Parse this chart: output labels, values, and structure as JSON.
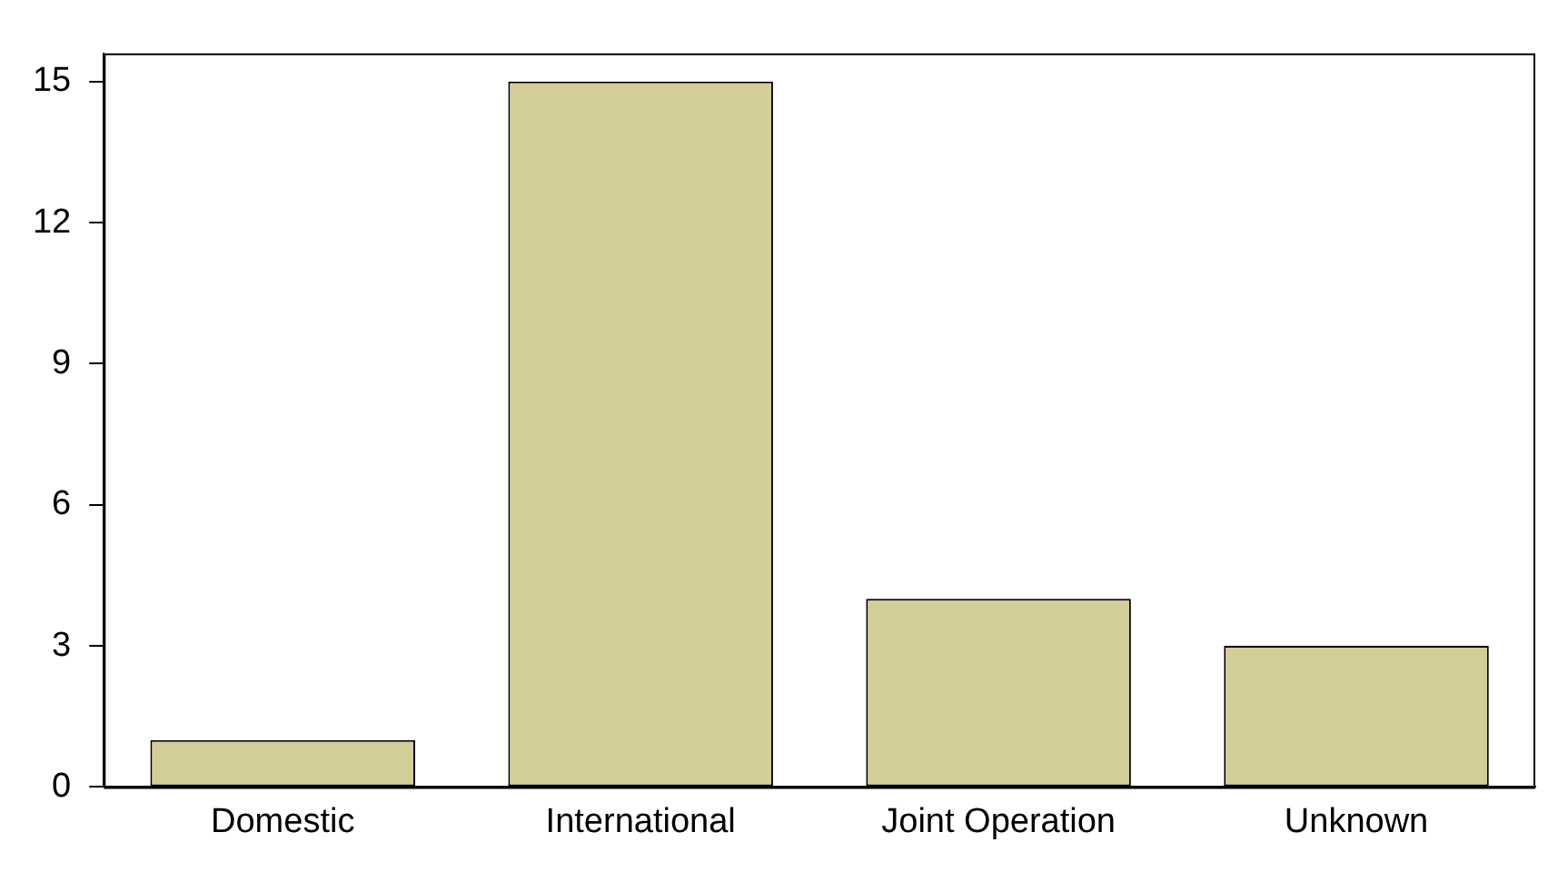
{
  "chart_data": {
    "type": "bar",
    "categories": [
      "Domestic",
      "International",
      "Joint Operation",
      "Unknown"
    ],
    "values": [
      1,
      15,
      4,
      3
    ],
    "color": "#d3cd98",
    "ylim": [
      0,
      15.6
    ],
    "yticks": [
      0,
      3,
      6,
      9,
      12,
      15
    ],
    "grid": false,
    "legend": false
  }
}
